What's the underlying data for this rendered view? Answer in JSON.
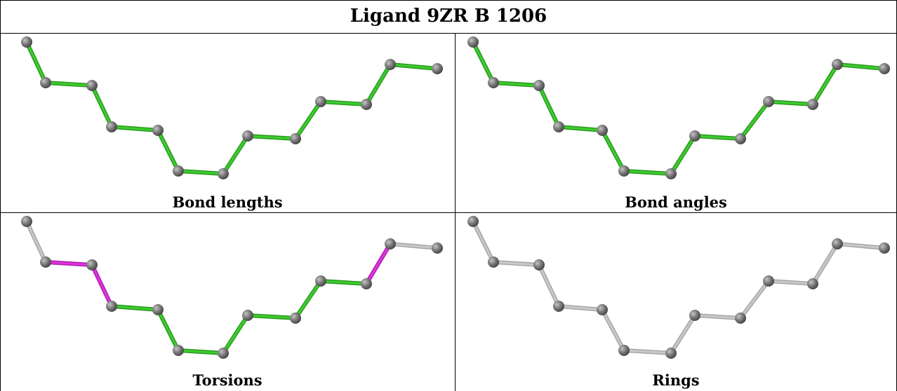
{
  "title": "Ligand 9ZR B 1206",
  "panels": [
    {
      "id": "bond-lengths",
      "caption": "Bond lengths",
      "bond_colors": [
        "green",
        "green",
        "green",
        "green",
        "green",
        "green",
        "green",
        "green",
        "green",
        "green",
        "green",
        "green",
        "green",
        "green",
        "green",
        "green",
        "green",
        "green"
      ]
    },
    {
      "id": "bond-angles",
      "caption": "Bond angles",
      "bond_colors": [
        "green",
        "green",
        "green",
        "green",
        "green",
        "green",
        "green",
        "green",
        "green",
        "green",
        "green",
        "green",
        "green",
        "green",
        "green",
        "green",
        "green",
        "green"
      ]
    },
    {
      "id": "torsions",
      "caption": "Torsions",
      "bond_colors": [
        "gray",
        "magenta",
        "magenta",
        "green",
        "green",
        "green",
        "green",
        "green",
        "green",
        "green",
        "magenta",
        "gray"
      ]
    },
    {
      "id": "rings",
      "caption": "Rings",
      "bond_colors": [
        "gray",
        "gray",
        "gray",
        "gray",
        "gray",
        "gray",
        "gray",
        "gray",
        "gray",
        "gray",
        "gray",
        "gray"
      ]
    }
  ],
  "colors": {
    "green": "#3dcc2e",
    "magenta": "#dd33dd",
    "gray": "#c8c8c8",
    "atom": "#7a7a7a"
  }
}
